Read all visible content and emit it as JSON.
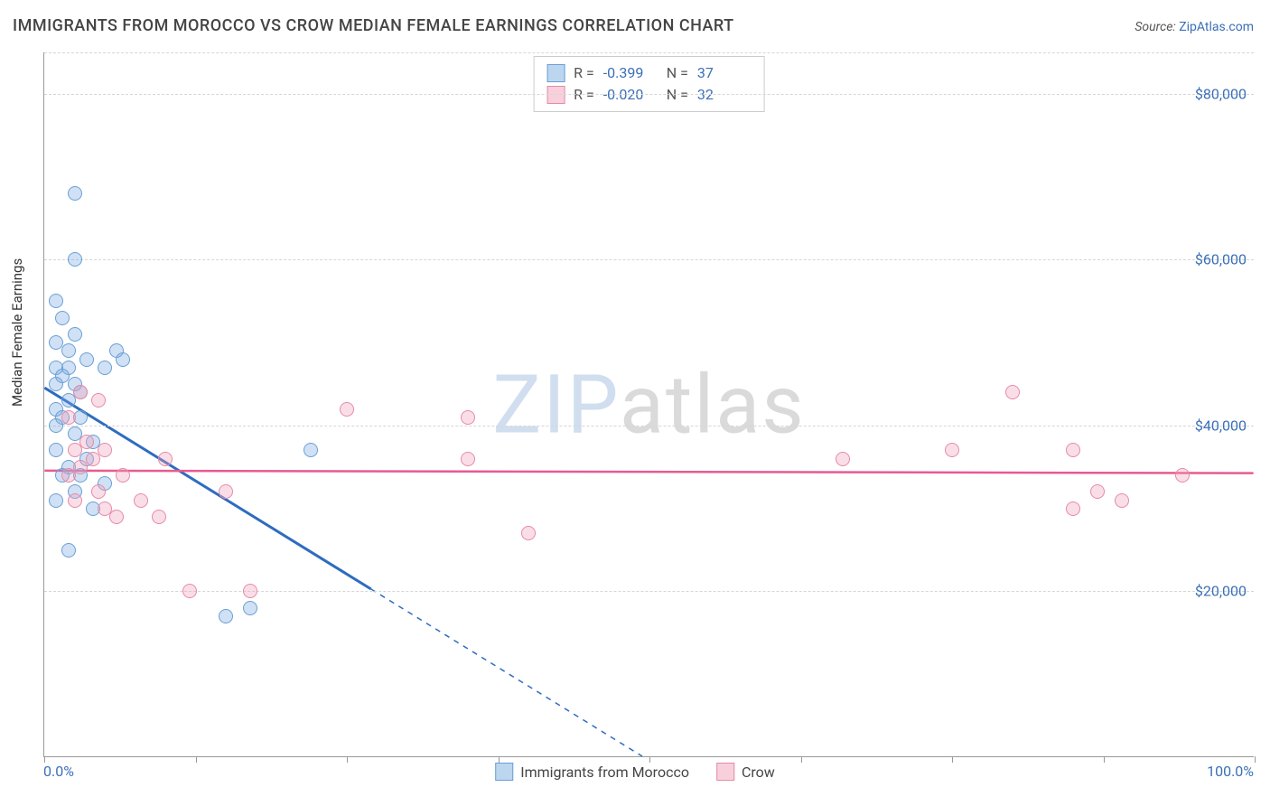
{
  "title": "IMMIGRANTS FROM MOROCCO VS CROW MEDIAN FEMALE EARNINGS CORRELATION CHART",
  "source_label": "Source: ",
  "source_value": "ZipAtlas.com",
  "ylabel": "Median Female Earnings",
  "watermark_a": "ZIP",
  "watermark_b": "atlas",
  "chart": {
    "type": "scatter",
    "xlim": [
      0,
      100
    ],
    "ylim": [
      0,
      85000
    ],
    "x_tick_positions": [
      0,
      12.5,
      25,
      37.5,
      50,
      62.5,
      75,
      87.5,
      100
    ],
    "y_gridlines": [
      20000,
      40000,
      60000,
      80000
    ],
    "y_tick_labels": [
      "$20,000",
      "$40,000",
      "$60,000",
      "$80,000"
    ],
    "x_min_label": "0.0%",
    "x_max_label": "100.0%",
    "background_color": "#ffffff",
    "grid_color": "#d6d6d6",
    "marker_radius": 8,
    "marker_border_width": 1.5,
    "series": [
      {
        "name": "Immigrants from Morocco",
        "fill": "rgba(120,170,225,0.35)",
        "stroke": "#6a9fd4",
        "swatch_fill": "#bcd6f0",
        "swatch_border": "#6a9fd4",
        "r_label": "R =",
        "r_value": "-0.399",
        "n_label": "N =",
        "n_value": "37",
        "trend": {
          "y_at_x0": 44500,
          "slope": -900,
          "solid_color": "#2e6cc0",
          "dash_after_x": 27,
          "line_width": 3
        },
        "points": [
          [
            2.5,
            68000
          ],
          [
            2.5,
            60000
          ],
          [
            1.0,
            55000
          ],
          [
            1.5,
            53000
          ],
          [
            2.5,
            51000
          ],
          [
            1.0,
            50000
          ],
          [
            2.0,
            49000
          ],
          [
            6.0,
            49000
          ],
          [
            3.5,
            48000
          ],
          [
            2.0,
            47000
          ],
          [
            1.0,
            47000
          ],
          [
            5.0,
            47000
          ],
          [
            6.5,
            48000
          ],
          [
            1.5,
            46000
          ],
          [
            2.5,
            45000
          ],
          [
            1.0,
            45000
          ],
          [
            3.0,
            44000
          ],
          [
            2.0,
            43000
          ],
          [
            1.0,
            42000
          ],
          [
            1.5,
            41000
          ],
          [
            3.0,
            41000
          ],
          [
            1.0,
            40000
          ],
          [
            2.5,
            39000
          ],
          [
            4.0,
            38000
          ],
          [
            1.0,
            37000
          ],
          [
            22.0,
            37000
          ],
          [
            3.5,
            36000
          ],
          [
            2.0,
            35000
          ],
          [
            1.5,
            34000
          ],
          [
            3.0,
            34000
          ],
          [
            5.0,
            33000
          ],
          [
            2.5,
            32000
          ],
          [
            1.0,
            31000
          ],
          [
            4.0,
            30000
          ],
          [
            2.0,
            25000
          ],
          [
            15.0,
            17000
          ],
          [
            17.0,
            18000
          ]
        ]
      },
      {
        "name": "Crow",
        "fill": "rgba(240,160,185,0.35)",
        "stroke": "#e68aa8",
        "swatch_fill": "#f7d0dc",
        "swatch_border": "#e68aa8",
        "r_label": "R =",
        "r_value": "-0.020",
        "n_label": "N =",
        "n_value": "32",
        "trend": {
          "y_at_x0": 34500,
          "slope": -3,
          "solid_color": "#e85a8f",
          "dash_after_x": 100,
          "line_width": 2.5
        },
        "points": [
          [
            3.0,
            44000
          ],
          [
            4.5,
            43000
          ],
          [
            2.0,
            41000
          ],
          [
            25.0,
            42000
          ],
          [
            35.0,
            41000
          ],
          [
            3.5,
            38000
          ],
          [
            2.5,
            37000
          ],
          [
            5.0,
            37000
          ],
          [
            4.0,
            36000
          ],
          [
            10.0,
            36000
          ],
          [
            66.0,
            36000
          ],
          [
            75.0,
            37000
          ],
          [
            80.0,
            44000
          ],
          [
            85.0,
            37000
          ],
          [
            3.0,
            35000
          ],
          [
            35.0,
            36000
          ],
          [
            2.0,
            34000
          ],
          [
            6.5,
            34000
          ],
          [
            94.0,
            34000
          ],
          [
            4.5,
            32000
          ],
          [
            2.5,
            31000
          ],
          [
            8.0,
            31000
          ],
          [
            15.0,
            32000
          ],
          [
            87.0,
            32000
          ],
          [
            89.0,
            31000
          ],
          [
            85.0,
            30000
          ],
          [
            5.0,
            30000
          ],
          [
            6.0,
            29000
          ],
          [
            9.5,
            29000
          ],
          [
            40.0,
            27000
          ],
          [
            12.0,
            20000
          ],
          [
            17.0,
            20000
          ]
        ]
      }
    ]
  }
}
